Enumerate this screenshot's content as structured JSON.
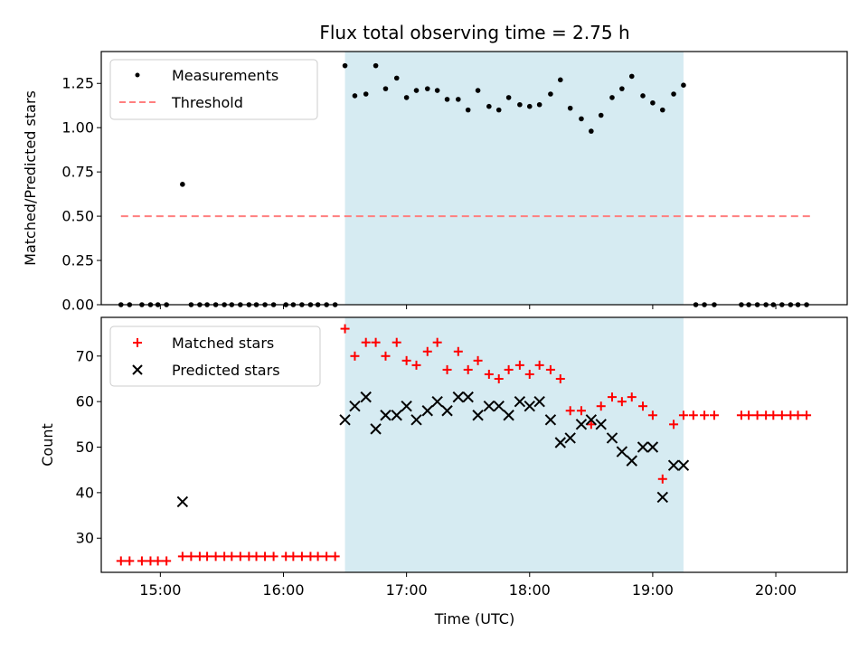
{
  "title": "Flux total observing time = 2.75 h",
  "x_axis_label": "Time (UTC)",
  "x_ticks": [
    "15:00",
    "16:00",
    "17:00",
    "18:00",
    "19:00",
    "20:00"
  ],
  "shade_color": "#add8e6",
  "chart_data": [
    {
      "type": "scatter",
      "panel": "top",
      "ylabel": "Matched/Predicted stars",
      "ylim": [
        0,
        1.43
      ],
      "yticks": [
        "0.00",
        "0.25",
        "0.50",
        "0.75",
        "1.00",
        "1.25"
      ],
      "xlim_hours": [
        14.52,
        20.58
      ],
      "shaded_interval": [
        "16:30",
        "19:15"
      ],
      "legend_position": "upper left",
      "series": [
        {
          "name": "Measurements",
          "marker": "dot",
          "color": "#000000",
          "x": [
            "14:42",
            "14:48",
            "14:54",
            "14:59",
            "15:05",
            "15:11",
            "15:23",
            "15:29",
            "15:35",
            "15:41",
            "15:47",
            "15:53",
            "15:59",
            "16:05",
            "16:11",
            "16:17",
            "16:23",
            "16:29",
            "16:35",
            "16:41",
            "16:47",
            "16:53",
            "16:59",
            "17:05",
            "17:11",
            "17:17",
            "17:23",
            "17:29",
            "17:35",
            "17:41",
            "17:47",
            "17:53",
            "17:59",
            "18:05",
            "18:11",
            "18:17",
            "18:23",
            "18:29",
            "18:35",
            "18:41",
            "18:47",
            "18:53",
            "18:59",
            "19:05",
            "19:11",
            "19:17",
            "19:23",
            "19:29",
            "19:35",
            "19:40",
            "19:46",
            "19:52",
            "19:58",
            "20:04",
            "20:10",
            "20:16"
          ],
          "x_decimal": [
            14.7,
            14.8,
            14.9,
            14.98,
            15.08,
            15.18,
            15.38,
            15.48,
            15.58,
            15.68,
            15.78,
            15.88,
            15.98,
            16.08,
            16.18,
            16.28,
            16.38,
            16.48,
            16.58,
            16.68,
            16.78,
            16.88,
            16.98,
            17.08,
            17.18,
            17.28,
            17.38,
            17.48,
            17.58,
            17.68,
            17.78,
            17.88,
            17.98,
            18.08,
            18.18,
            18.28,
            18.38,
            18.48,
            18.58,
            18.68,
            18.78,
            18.88,
            18.98,
            19.08,
            19.18,
            19.28,
            19.38,
            19.48,
            19.58,
            19.67,
            19.77,
            19.87,
            19.97,
            20.07,
            20.17,
            20.27
          ],
          "values_note": "see points",
          "points": [
            [
              14.68,
              0
            ],
            [
              14.75,
              0
            ],
            [
              14.85,
              0
            ],
            [
              14.92,
              0
            ],
            [
              14.98,
              0
            ],
            [
              15.05,
              0
            ],
            [
              15.18,
              0.68
            ],
            [
              15.25,
              0
            ],
            [
              15.32,
              0
            ],
            [
              15.38,
              0
            ],
            [
              15.45,
              0
            ],
            [
              15.52,
              0
            ],
            [
              15.58,
              0
            ],
            [
              15.65,
              0
            ],
            [
              15.72,
              0
            ],
            [
              15.78,
              0
            ],
            [
              15.85,
              0
            ],
            [
              15.92,
              0
            ],
            [
              16.02,
              0
            ],
            [
              16.08,
              0
            ],
            [
              16.15,
              0
            ],
            [
              16.22,
              0
            ],
            [
              16.28,
              0
            ],
            [
              16.35,
              0
            ],
            [
              16.42,
              0
            ],
            [
              16.5,
              1.35
            ],
            [
              16.58,
              1.18
            ],
            [
              16.67,
              1.19
            ],
            [
              16.75,
              1.35
            ],
            [
              16.83,
              1.22
            ],
            [
              16.92,
              1.28
            ],
            [
              17.0,
              1.17
            ],
            [
              17.08,
              1.21
            ],
            [
              17.17,
              1.22
            ],
            [
              17.25,
              1.21
            ],
            [
              17.33,
              1.16
            ],
            [
              17.42,
              1.16
            ],
            [
              17.5,
              1.1
            ],
            [
              17.58,
              1.21
            ],
            [
              17.67,
              1.12
            ],
            [
              17.75,
              1.1
            ],
            [
              17.83,
              1.17
            ],
            [
              17.92,
              1.13
            ],
            [
              18.0,
              1.12
            ],
            [
              18.08,
              1.13
            ],
            [
              18.17,
              1.19
            ],
            [
              18.25,
              1.27
            ],
            [
              18.33,
              1.11
            ],
            [
              18.42,
              1.05
            ],
            [
              18.5,
              0.98
            ],
            [
              18.58,
              1.07
            ],
            [
              18.67,
              1.17
            ],
            [
              18.75,
              1.22
            ],
            [
              18.83,
              1.29
            ],
            [
              18.92,
              1.18
            ],
            [
              19.0,
              1.14
            ],
            [
              19.08,
              1.1
            ],
            [
              19.17,
              1.19
            ],
            [
              19.25,
              1.24
            ],
            [
              19.35,
              0
            ],
            [
              19.42,
              0
            ],
            [
              19.5,
              0
            ],
            [
              19.72,
              0
            ],
            [
              19.78,
              0
            ],
            [
              19.85,
              0
            ],
            [
              19.92,
              0
            ],
            [
              19.98,
              0
            ],
            [
              20.05,
              0
            ],
            [
              20.12,
              0
            ],
            [
              20.18,
              0
            ],
            [
              20.25,
              0
            ]
          ]
        },
        {
          "name": "Threshold",
          "marker": "dashed-line",
          "color": "#ff7f7f",
          "points": [
            [
              14.68,
              0.5
            ],
            [
              20.28,
              0.5
            ]
          ]
        }
      ]
    },
    {
      "type": "scatter",
      "panel": "bottom",
      "ylabel": "Count",
      "ylim": [
        22.5,
        78.5
      ],
      "yticks": [
        "30",
        "40",
        "50",
        "60",
        "70"
      ],
      "xlim_hours": [
        14.52,
        20.58
      ],
      "shaded_interval": [
        "16:30",
        "19:15"
      ],
      "legend_position": "upper left",
      "series": [
        {
          "name": "Matched stars",
          "marker": "plus",
          "color": "#ff0000",
          "points": [
            [
              14.68,
              25
            ],
            [
              14.75,
              25
            ],
            [
              14.85,
              25
            ],
            [
              14.92,
              25
            ],
            [
              14.98,
              25
            ],
            [
              15.05,
              25
            ],
            [
              15.18,
              26
            ],
            [
              15.25,
              26
            ],
            [
              15.32,
              26
            ],
            [
              15.38,
              26
            ],
            [
              15.45,
              26
            ],
            [
              15.52,
              26
            ],
            [
              15.58,
              26
            ],
            [
              15.65,
              26
            ],
            [
              15.72,
              26
            ],
            [
              15.78,
              26
            ],
            [
              15.85,
              26
            ],
            [
              15.92,
              26
            ],
            [
              16.02,
              26
            ],
            [
              16.08,
              26
            ],
            [
              16.15,
              26
            ],
            [
              16.22,
              26
            ],
            [
              16.28,
              26
            ],
            [
              16.35,
              26
            ],
            [
              16.42,
              26
            ],
            [
              16.5,
              76
            ],
            [
              16.58,
              70
            ],
            [
              16.67,
              73
            ],
            [
              16.75,
              73
            ],
            [
              16.83,
              70
            ],
            [
              16.92,
              73
            ],
            [
              17.0,
              69
            ],
            [
              17.08,
              68
            ],
            [
              17.17,
              71
            ],
            [
              17.25,
              73
            ],
            [
              17.33,
              67
            ],
            [
              17.42,
              71
            ],
            [
              17.5,
              67
            ],
            [
              17.58,
              69
            ],
            [
              17.67,
              66
            ],
            [
              17.75,
              65
            ],
            [
              17.83,
              67
            ],
            [
              17.92,
              68
            ],
            [
              18.0,
              66
            ],
            [
              18.08,
              68
            ],
            [
              18.17,
              67
            ],
            [
              18.25,
              65
            ],
            [
              18.33,
              58
            ],
            [
              18.42,
              58
            ],
            [
              18.5,
              55
            ],
            [
              18.58,
              59
            ],
            [
              18.67,
              61
            ],
            [
              18.75,
              60
            ],
            [
              18.83,
              61
            ],
            [
              18.92,
              59
            ],
            [
              19.0,
              57
            ],
            [
              19.08,
              43
            ],
            [
              19.17,
              55
            ],
            [
              19.25,
              57
            ],
            [
              19.33,
              57
            ],
            [
              19.42,
              57
            ],
            [
              19.5,
              57
            ],
            [
              19.72,
              57
            ],
            [
              19.78,
              57
            ],
            [
              19.85,
              57
            ],
            [
              19.92,
              57
            ],
            [
              19.98,
              57
            ],
            [
              20.05,
              57
            ],
            [
              20.12,
              57
            ],
            [
              20.18,
              57
            ],
            [
              20.25,
              57
            ]
          ]
        },
        {
          "name": "Predicted stars",
          "marker": "x",
          "color": "#000000",
          "points": [
            [
              15.18,
              38
            ],
            [
              16.5,
              56
            ],
            [
              16.58,
              59
            ],
            [
              16.67,
              61
            ],
            [
              16.75,
              54
            ],
            [
              16.83,
              57
            ],
            [
              16.92,
              57
            ],
            [
              17.0,
              59
            ],
            [
              17.08,
              56
            ],
            [
              17.17,
              58
            ],
            [
              17.25,
              60
            ],
            [
              17.33,
              58
            ],
            [
              17.42,
              61
            ],
            [
              17.5,
              61
            ],
            [
              17.58,
              57
            ],
            [
              17.67,
              59
            ],
            [
              17.75,
              59
            ],
            [
              17.83,
              57
            ],
            [
              17.92,
              60
            ],
            [
              18.0,
              59
            ],
            [
              18.08,
              60
            ],
            [
              18.17,
              56
            ],
            [
              18.25,
              51
            ],
            [
              18.33,
              52
            ],
            [
              18.42,
              55
            ],
            [
              18.5,
              56
            ],
            [
              18.58,
              55
            ],
            [
              18.67,
              52
            ],
            [
              18.75,
              49
            ],
            [
              18.83,
              47
            ],
            [
              18.92,
              50
            ],
            [
              19.0,
              50
            ],
            [
              19.08,
              39
            ],
            [
              19.17,
              46
            ],
            [
              19.25,
              46
            ]
          ]
        }
      ]
    }
  ]
}
